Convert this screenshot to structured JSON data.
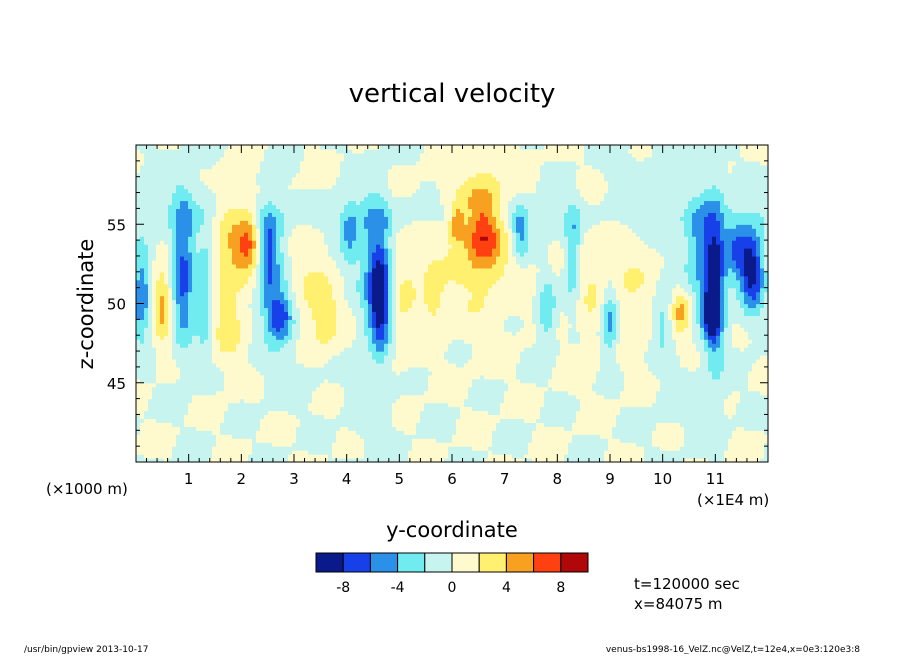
{
  "chart_data": {
    "type": "heatmap",
    "title": "vertical velocity",
    "xlabel": "y-coordinate",
    "ylabel": "z-coordinate",
    "x_unit_left": "(×1000 m)",
    "x_unit_right": "(×1E4 m)",
    "xlim": [
      0,
      12
    ],
    "ylim": [
      40,
      60
    ],
    "xticks": [
      1,
      2,
      3,
      4,
      5,
      6,
      7,
      8,
      9,
      10,
      11
    ],
    "yticks": [
      45,
      50,
      55
    ],
    "colorbar": {
      "levels": [
        -10,
        -8,
        -6,
        -4,
        -2,
        0,
        2,
        4,
        6,
        8,
        10
      ],
      "tick_labels": [
        "-8",
        "-4",
        "0",
        "4",
        "8"
      ],
      "tick_values": [
        -8,
        -4,
        0,
        4,
        8
      ],
      "colors": [
        "#0a1a8a",
        "#1840e8",
        "#2a90e8",
        "#70ecf0",
        "#c8f4f0",
        "#fffacd",
        "#fff070",
        "#f8a020",
        "#ff4010",
        "#b00808"
      ]
    },
    "annotations": {
      "time": "t=120000 sec",
      "position": "x=84075 m"
    },
    "features": [
      {
        "y": 0.1,
        "z": 50.5,
        "value": -6,
        "sy": 0.12,
        "sz": 2.0
      },
      {
        "y": 0.5,
        "z": 50.0,
        "value": 5,
        "sy": 0.12,
        "sz": 1.6
      },
      {
        "y": 0.9,
        "z": 52.0,
        "value": -7,
        "sy": 0.14,
        "sz": 3.0
      },
      {
        "y": 1.3,
        "z": 50.5,
        "value": -4,
        "sy": 0.1,
        "sz": 2.5
      },
      {
        "y": 1.85,
        "z": 54.2,
        "value": 4,
        "sy": 0.25,
        "sz": 2.2
      },
      {
        "y": 1.75,
        "z": 49.0,
        "value": 3,
        "sy": 0.2,
        "sz": 2.0
      },
      {
        "y": 2.15,
        "z": 54.0,
        "value": 5,
        "sy": 0.15,
        "sz": 1.2
      },
      {
        "y": 2.5,
        "z": 53.0,
        "value": -5,
        "sy": 0.12,
        "sz": 2.0
      },
      {
        "y": 2.75,
        "z": 49.2,
        "value": -7,
        "sy": 0.18,
        "sz": 1.0
      },
      {
        "y": 2.65,
        "z": 52.0,
        "value": -3,
        "sy": 0.2,
        "sz": 3.0
      },
      {
        "y": 3.2,
        "z": 51.5,
        "value": 2,
        "sy": 0.3,
        "sz": 3.0
      },
      {
        "y": 3.6,
        "z": 49.0,
        "value": 3,
        "sy": 0.2,
        "sz": 1.5
      },
      {
        "y": 4.05,
        "z": 54.5,
        "value": -4,
        "sy": 0.12,
        "sz": 1.5
      },
      {
        "y": 4.65,
        "z": 50.5,
        "value": -9,
        "sy": 0.14,
        "sz": 2.4
      },
      {
        "y": 4.5,
        "z": 52.5,
        "value": -4,
        "sy": 0.2,
        "sz": 3.5
      },
      {
        "y": 5.1,
        "z": 51.0,
        "value": 2,
        "sy": 0.3,
        "sz": 3.0
      },
      {
        "y": 5.65,
        "z": 50.5,
        "value": 3,
        "sy": 0.12,
        "sz": 1.2
      },
      {
        "y": 6.5,
        "z": 54.0,
        "value": 3,
        "sy": 0.55,
        "sz": 3.5
      },
      {
        "y": 6.6,
        "z": 54.8,
        "value": 5.5,
        "sy": 0.22,
        "sz": 1.8
      },
      {
        "y": 6.1,
        "z": 55.0,
        "value": 5,
        "sy": 0.1,
        "sz": 0.8
      },
      {
        "y": 7.3,
        "z": 54.5,
        "value": -5,
        "sy": 0.12,
        "sz": 1.2
      },
      {
        "y": 7.8,
        "z": 49.5,
        "value": -4,
        "sy": 0.12,
        "sz": 1.5
      },
      {
        "y": 8.3,
        "z": 53.0,
        "value": -5,
        "sy": 0.12,
        "sz": 2.2
      },
      {
        "y": 8.6,
        "z": 52.0,
        "value": 2,
        "sy": 0.35,
        "sz": 3.5
      },
      {
        "y": 9.0,
        "z": 49.0,
        "value": -6,
        "sy": 0.12,
        "sz": 1.5
      },
      {
        "y": 9.4,
        "z": 50.5,
        "value": 2,
        "sy": 0.3,
        "sz": 2.5
      },
      {
        "y": 10.0,
        "z": 49.0,
        "value": -3,
        "sy": 0.12,
        "sz": 1.5
      },
      {
        "y": 10.35,
        "z": 49.5,
        "value": 4.5,
        "sy": 0.12,
        "sz": 1.0
      },
      {
        "y": 10.7,
        "z": 53.5,
        "value": -5,
        "sy": 0.2,
        "sz": 2.0
      },
      {
        "y": 11.0,
        "z": 51.5,
        "value": -8,
        "sy": 0.14,
        "sz": 3.5
      },
      {
        "y": 10.9,
        "z": 49.5,
        "value": -7,
        "sy": 0.12,
        "sz": 1.2
      },
      {
        "y": 11.7,
        "z": 52.2,
        "value": -9,
        "sy": 0.16,
        "sz": 1.8
      },
      {
        "y": 11.4,
        "z": 53.5,
        "value": -5,
        "sy": 0.15,
        "sz": 1.5
      },
      {
        "y": 6.0,
        "z": 55.5,
        "value": -1.5,
        "sy": 6.0,
        "sz": 0.8
      },
      {
        "y": 3.0,
        "z": 46.0,
        "value": -1.0,
        "sy": 0.4,
        "sz": 1.5
      },
      {
        "y": 9.5,
        "z": 58.0,
        "value": -1.0,
        "sy": 0.6,
        "sz": 1.2
      },
      {
        "y": 0.8,
        "z": 57.0,
        "value": -1.0,
        "sy": 0.5,
        "sz": 1.5
      },
      {
        "y": 4.5,
        "z": 43.0,
        "value": -1.0,
        "sy": 0.3,
        "sz": 1.5
      },
      {
        "y": 10.5,
        "z": 44.0,
        "value": -1.0,
        "sy": 0.4,
        "sz": 1.5
      }
    ]
  },
  "footer": {
    "left": "/usr/bin/gpview   2013-10-17",
    "right": "venus-bs1998-16_VelZ.nc@VelZ,t=12e4,x=0e3:120e3:8"
  }
}
